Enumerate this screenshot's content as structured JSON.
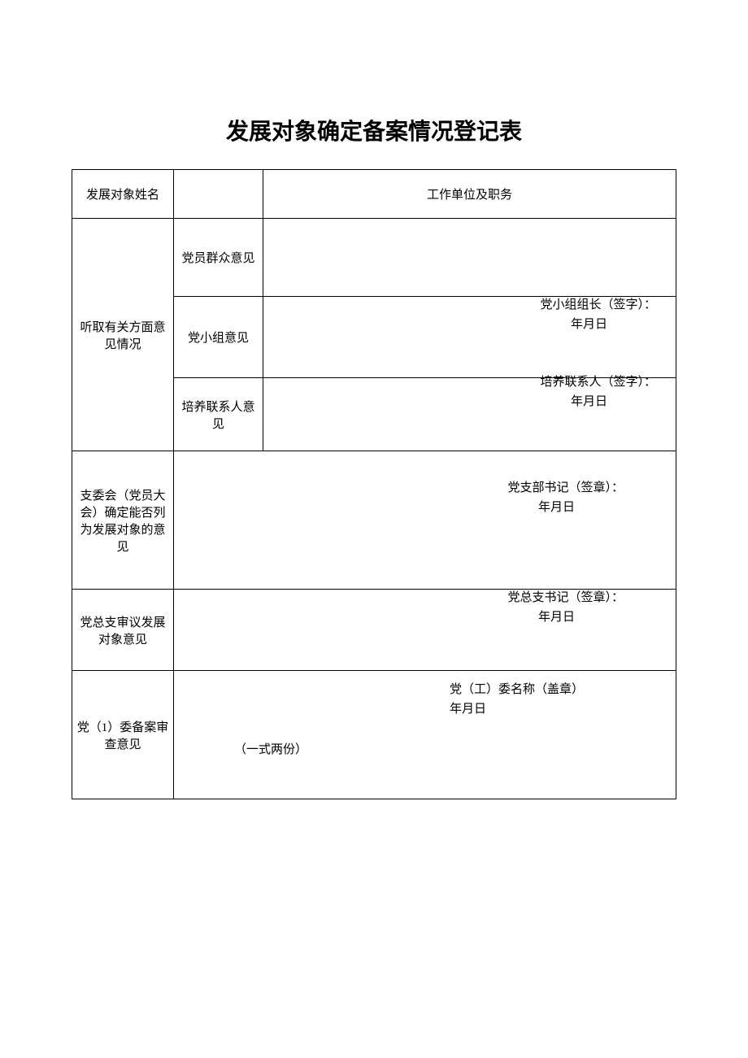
{
  "title": "发展对象确定备案情况登记表",
  "row1": {
    "label": "发展对象姓名",
    "work_label": "工作单位及职务"
  },
  "opinions": {
    "header": "听取有关方面意见情况",
    "sub1": "党员群众意见",
    "sub2": {
      "label": "党小组意见",
      "sig": "党小组组长（签字）：",
      "date": "年月日"
    },
    "sub3": {
      "label": "培养联系人意见",
      "sig": "培养联系人（签字）：",
      "date": "年月日"
    }
  },
  "committee": {
    "label": "支委会（党员大会）确定能否列为发展对象的意见",
    "sig": "党支部书记（签章）：",
    "date": "年月日"
  },
  "general_branch": {
    "label": "党总支审议发展对象意见",
    "sig": "党总支书记（签章）：",
    "date": "年月日"
  },
  "filing": {
    "label": "党（1）委备案审查意见",
    "copies": "（一式两份）",
    "sig": "党（工）委名称（盖章）",
    "date": "年月日"
  }
}
